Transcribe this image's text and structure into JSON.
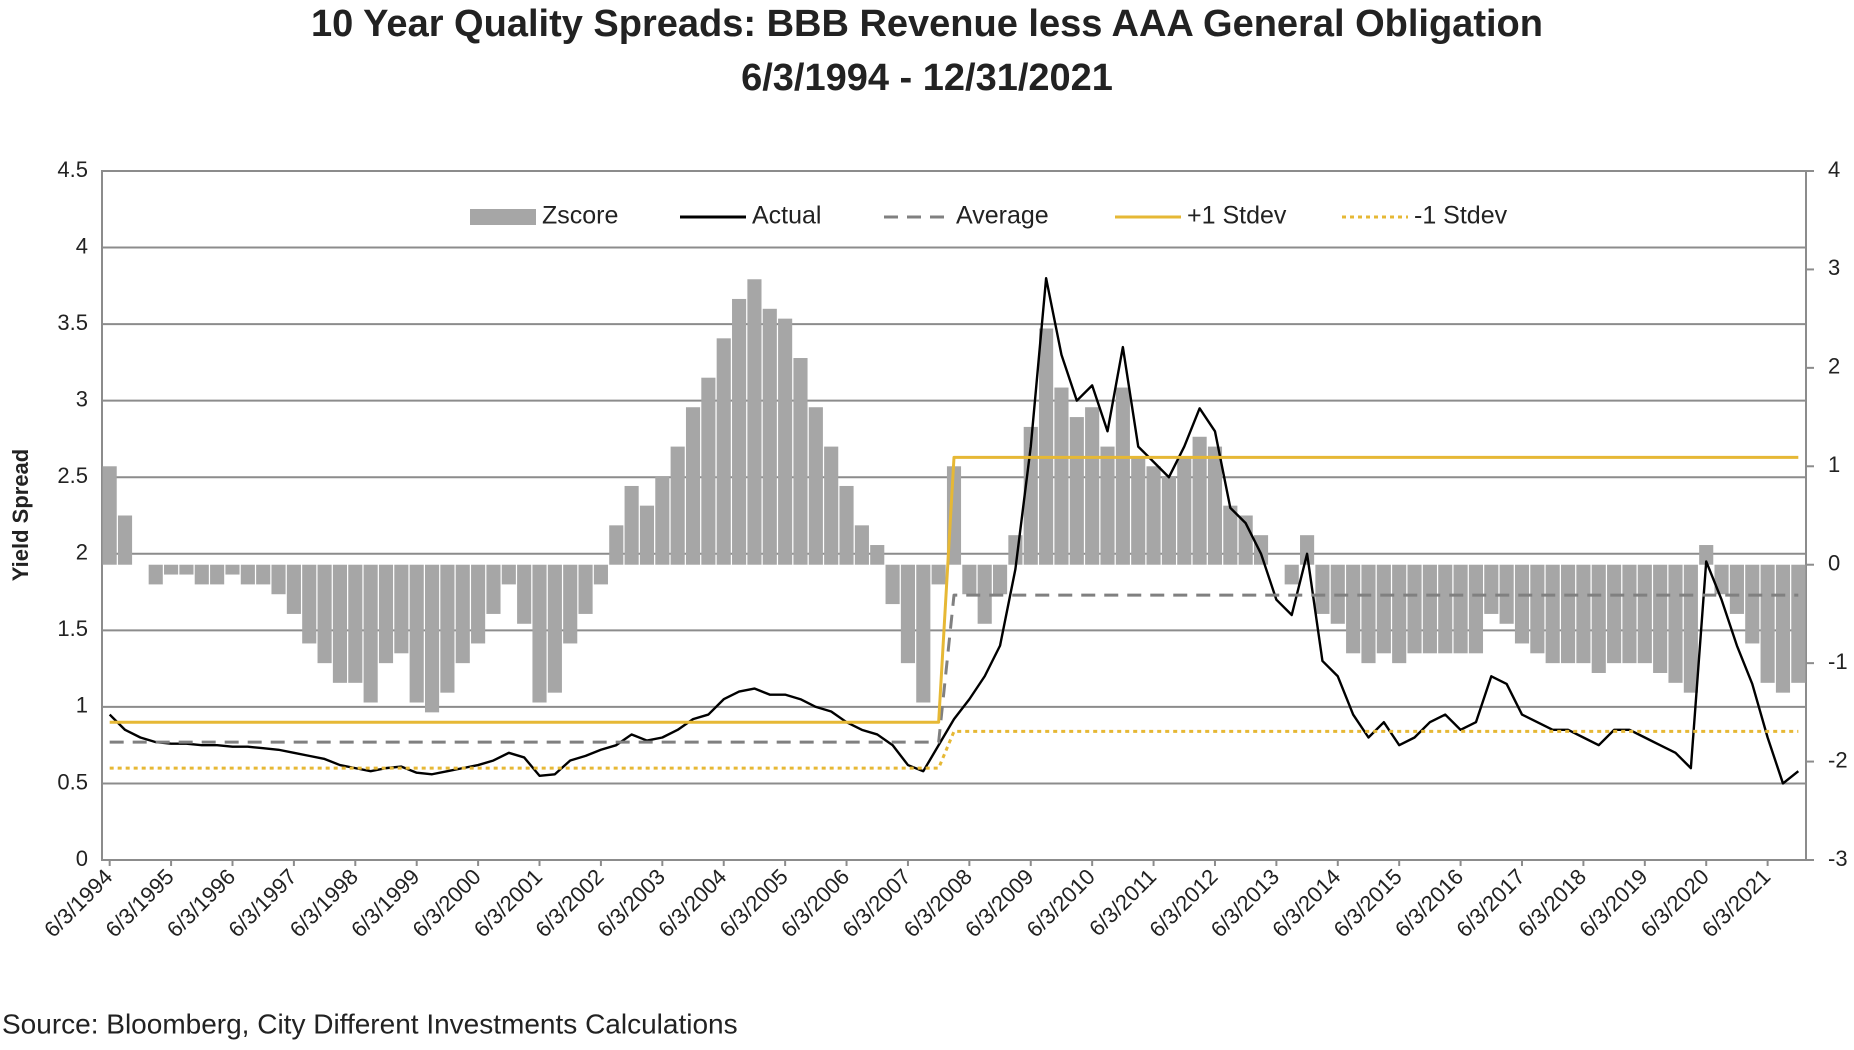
{
  "chart_data": {
    "type": "bar-line",
    "title": "10 Year Quality Spreads: BBB Revenue less AAA General Obligation",
    "subtitle": "6/3/1994 - 12/31/2021",
    "y_label": "Yield Spread",
    "source": "Source: Bloomberg, City Different Investments Calculations",
    "categories": [
      "6/3/1994",
      null,
      null,
      null,
      "6/3/1995",
      null,
      null,
      null,
      "6/3/1996",
      null,
      null,
      null,
      "6/3/1997",
      null,
      null,
      null,
      "6/3/1998",
      null,
      null,
      null,
      "6/3/1999",
      null,
      null,
      null,
      "6/3/2000",
      null,
      null,
      null,
      "6/3/2001",
      null,
      null,
      null,
      "6/3/2002",
      null,
      null,
      null,
      "6/3/2003",
      null,
      null,
      null,
      "6/3/2004",
      null,
      null,
      null,
      "6/3/2005",
      null,
      null,
      null,
      "6/3/2006",
      null,
      null,
      null,
      "6/3/2007",
      null,
      null,
      null,
      "6/3/2008",
      null,
      null,
      null,
      "6/3/2009",
      null,
      null,
      null,
      "6/3/2010",
      null,
      null,
      null,
      "6/3/2011",
      null,
      null,
      null,
      "6/3/2012",
      null,
      null,
      null,
      "6/3/2013",
      null,
      null,
      null,
      "6/3/2014",
      null,
      null,
      null,
      "6/3/2015",
      null,
      null,
      null,
      "6/3/2016",
      null,
      null,
      null,
      "6/3/2017",
      null,
      null,
      null,
      "6/3/2018",
      null,
      null,
      null,
      "6/3/2019",
      null,
      null,
      null,
      "6/3/2020",
      null,
      null,
      null,
      "6/3/2021",
      null,
      null
    ],
    "ylim": [
      0,
      4.5
    ],
    "yticks": [
      0,
      0.5,
      1,
      1.5,
      2,
      2.5,
      3,
      3.5,
      4,
      4.5
    ],
    "y2lim": [
      -3,
      4
    ],
    "y2ticks": [
      -3,
      -2,
      -1,
      0,
      1,
      2,
      3,
      4
    ],
    "grid": true,
    "legend": "top",
    "series": [
      {
        "name": "Zscore",
        "kind": "bar",
        "axis": "y2",
        "color": "#a6a6a6",
        "values": [
          1.0,
          0.5,
          0.0,
          -0.2,
          -0.1,
          -0.1,
          -0.2,
          -0.2,
          -0.1,
          -0.2,
          -0.2,
          -0.3,
          -0.5,
          -0.8,
          -1.0,
          -1.2,
          -1.2,
          -1.4,
          -1.0,
          -0.9,
          -1.4,
          -1.5,
          -1.3,
          -1.0,
          -0.8,
          -0.5,
          -0.2,
          -0.6,
          -1.4,
          -1.3,
          -0.8,
          -0.5,
          -0.2,
          0.4,
          0.8,
          0.6,
          0.9,
          1.2,
          1.6,
          1.9,
          2.3,
          2.7,
          2.9,
          2.6,
          2.5,
          2.1,
          1.6,
          1.2,
          0.8,
          0.4,
          0.2,
          -0.4,
          -1.0,
          -1.4,
          -0.2,
          1.0,
          -0.3,
          -0.6,
          -0.3,
          0.3,
          1.4,
          2.4,
          1.8,
          1.5,
          1.6,
          1.2,
          1.8,
          1.1,
          1.0,
          0.9,
          1.1,
          1.3,
          1.2,
          0.6,
          0.5,
          0.3,
          0.0,
          -0.2,
          0.3,
          -0.5,
          -0.6,
          -0.9,
          -1.0,
          -0.9,
          -1.0,
          -0.9,
          -0.9,
          -0.9,
          -0.9,
          -0.9,
          -0.5,
          -0.6,
          -0.8,
          -0.9,
          -1.0,
          -1.0,
          -1.0,
          -1.1,
          -1.0,
          -1.0,
          -1.0,
          -1.1,
          -1.2,
          -1.3,
          0.2,
          -0.3,
          -0.5,
          -0.8,
          -1.2,
          -1.3,
          -1.2
        ]
      },
      {
        "name": "Actual",
        "kind": "line",
        "color": "#000000",
        "dash": "solid",
        "values": [
          0.95,
          0.85,
          0.8,
          0.77,
          0.76,
          0.76,
          0.75,
          0.75,
          0.74,
          0.74,
          0.73,
          0.72,
          0.7,
          0.68,
          0.66,
          0.62,
          0.6,
          0.58,
          0.6,
          0.61,
          0.57,
          0.56,
          0.58,
          0.6,
          0.62,
          0.65,
          0.7,
          0.67,
          0.55,
          0.56,
          0.65,
          0.68,
          0.72,
          0.75,
          0.82,
          0.78,
          0.8,
          0.85,
          0.92,
          0.95,
          1.05,
          1.1,
          1.12,
          1.08,
          1.08,
          1.05,
          1.0,
          0.97,
          0.9,
          0.85,
          0.82,
          0.75,
          0.62,
          0.58,
          0.75,
          0.92,
          1.05,
          1.2,
          1.4,
          1.9,
          2.7,
          3.8,
          3.3,
          3.0,
          3.1,
          2.8,
          3.35,
          2.7,
          2.6,
          2.5,
          2.7,
          2.95,
          2.8,
          2.3,
          2.2,
          2.0,
          1.7,
          1.6,
          2.0,
          1.3,
          1.2,
          0.95,
          0.8,
          0.9,
          0.75,
          0.8,
          0.9,
          0.95,
          0.85,
          0.9,
          1.2,
          1.15,
          0.95,
          0.9,
          0.85,
          0.85,
          0.8,
          0.75,
          0.85,
          0.85,
          0.8,
          0.75,
          0.7,
          0.6,
          1.95,
          1.7,
          1.4,
          1.15,
          0.8,
          0.5,
          0.58
        ]
      },
      {
        "name": "Average",
        "kind": "line",
        "color": "#808080",
        "dash": "dashed",
        "values": [
          0.77,
          0.77,
          0.77,
          0.77,
          0.77,
          0.77,
          0.77,
          0.77,
          0.77,
          0.77,
          0.77,
          0.77,
          0.77,
          0.77,
          0.77,
          0.77,
          0.77,
          0.77,
          0.77,
          0.77,
          0.77,
          0.77,
          0.77,
          0.77,
          0.77,
          0.77,
          0.77,
          0.77,
          0.77,
          0.77,
          0.77,
          0.77,
          0.77,
          0.77,
          0.77,
          0.77,
          0.77,
          0.77,
          0.77,
          0.77,
          0.77,
          0.77,
          0.77,
          0.77,
          0.77,
          0.77,
          0.77,
          0.77,
          0.77,
          0.77,
          0.77,
          0.77,
          0.77,
          0.77,
          0.77,
          1.73,
          1.73,
          1.73,
          1.73,
          1.73,
          1.73,
          1.73,
          1.73,
          1.73,
          1.73,
          1.73,
          1.73,
          1.73,
          1.73,
          1.73,
          1.73,
          1.73,
          1.73,
          1.73,
          1.73,
          1.73,
          1.73,
          1.73,
          1.73,
          1.73,
          1.73,
          1.73,
          1.73,
          1.73,
          1.73,
          1.73,
          1.73,
          1.73,
          1.73,
          1.73,
          1.73,
          1.73,
          1.73,
          1.73,
          1.73,
          1.73,
          1.73,
          1.73,
          1.73,
          1.73,
          1.73,
          1.73,
          1.73,
          1.73,
          1.73,
          1.73,
          1.73,
          1.73,
          1.73,
          1.73,
          1.73
        ]
      },
      {
        "name": "+1 Stdev",
        "kind": "line",
        "color": "#e6b835",
        "dash": "solid",
        "values": [
          0.9,
          0.9,
          0.9,
          0.9,
          0.9,
          0.9,
          0.9,
          0.9,
          0.9,
          0.9,
          0.9,
          0.9,
          0.9,
          0.9,
          0.9,
          0.9,
          0.9,
          0.9,
          0.9,
          0.9,
          0.9,
          0.9,
          0.9,
          0.9,
          0.9,
          0.9,
          0.9,
          0.9,
          0.9,
          0.9,
          0.9,
          0.9,
          0.9,
          0.9,
          0.9,
          0.9,
          0.9,
          0.9,
          0.9,
          0.9,
          0.9,
          0.9,
          0.9,
          0.9,
          0.9,
          0.9,
          0.9,
          0.9,
          0.9,
          0.9,
          0.9,
          0.9,
          0.9,
          0.9,
          0.9,
          2.63,
          2.63,
          2.63,
          2.63,
          2.63,
          2.63,
          2.63,
          2.63,
          2.63,
          2.63,
          2.63,
          2.63,
          2.63,
          2.63,
          2.63,
          2.63,
          2.63,
          2.63,
          2.63,
          2.63,
          2.63,
          2.63,
          2.63,
          2.63,
          2.63,
          2.63,
          2.63,
          2.63,
          2.63,
          2.63,
          2.63,
          2.63,
          2.63,
          2.63,
          2.63,
          2.63,
          2.63,
          2.63,
          2.63,
          2.63,
          2.63,
          2.63,
          2.63,
          2.63,
          2.63,
          2.63,
          2.63,
          2.63,
          2.63,
          2.63,
          2.63,
          2.63,
          2.63,
          2.63,
          2.63,
          2.63
        ]
      },
      {
        "name": "-1 Stdev",
        "kind": "line",
        "color": "#e6b835",
        "dash": "dotted",
        "values": [
          0.6,
          0.6,
          0.6,
          0.6,
          0.6,
          0.6,
          0.6,
          0.6,
          0.6,
          0.6,
          0.6,
          0.6,
          0.6,
          0.6,
          0.6,
          0.6,
          0.6,
          0.6,
          0.6,
          0.6,
          0.6,
          0.6,
          0.6,
          0.6,
          0.6,
          0.6,
          0.6,
          0.6,
          0.6,
          0.6,
          0.6,
          0.6,
          0.6,
          0.6,
          0.6,
          0.6,
          0.6,
          0.6,
          0.6,
          0.6,
          0.6,
          0.6,
          0.6,
          0.6,
          0.6,
          0.6,
          0.6,
          0.6,
          0.6,
          0.6,
          0.6,
          0.6,
          0.6,
          0.6,
          0.6,
          0.84,
          0.84,
          0.84,
          0.84,
          0.84,
          0.84,
          0.84,
          0.84,
          0.84,
          0.84,
          0.84,
          0.84,
          0.84,
          0.84,
          0.84,
          0.84,
          0.84,
          0.84,
          0.84,
          0.84,
          0.84,
          0.84,
          0.84,
          0.84,
          0.84,
          0.84,
          0.84,
          0.84,
          0.84,
          0.84,
          0.84,
          0.84,
          0.84,
          0.84,
          0.84,
          0.84,
          0.84,
          0.84,
          0.84,
          0.84,
          0.84,
          0.84,
          0.84,
          0.84,
          0.84,
          0.84,
          0.84,
          0.84,
          0.84,
          0.84,
          0.84,
          0.84,
          0.84,
          0.84,
          0.84,
          0.84
        ]
      }
    ]
  }
}
